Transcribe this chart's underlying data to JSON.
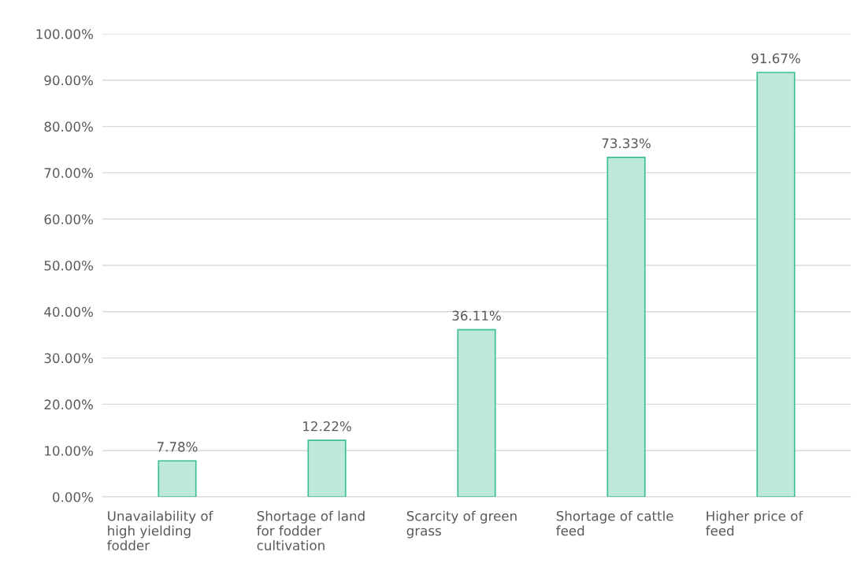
{
  "chart_data": {
    "type": "bar",
    "categories": [
      "Unavailability of\nhigh yielding\nfodder",
      "Shortage of land\nfor fodder\ncultivation",
      "Scarcity of green\ngrass",
      "Shortage of cattle\nfeed",
      "Higher price of\nfeed"
    ],
    "values": [
      7.78,
      12.22,
      36.11,
      73.33,
      91.67
    ],
    "value_labels": [
      "7.78%",
      "12.22%",
      "36.11%",
      "73.33%",
      "91.67%"
    ],
    "color": "#bde8da",
    "ylim": [
      0,
      100
    ],
    "yticks": [
      {
        "value": 0,
        "label": "0.00%"
      },
      {
        "value": 10,
        "label": "10.00%"
      },
      {
        "value": 20,
        "label": "20.00%"
      },
      {
        "value": 30,
        "label": "30.00%"
      },
      {
        "value": 40,
        "label": "40.00%"
      },
      {
        "value": 50,
        "label": "50.00%"
      },
      {
        "value": 60,
        "label": "60.00%"
      },
      {
        "value": 70,
        "label": "70.00%"
      },
      {
        "value": 80,
        "label": "80.00%"
      },
      {
        "value": 90,
        "label": "90.00%"
      },
      {
        "value": 100,
        "label": "100.00%"
      }
    ],
    "grid": "y"
  }
}
